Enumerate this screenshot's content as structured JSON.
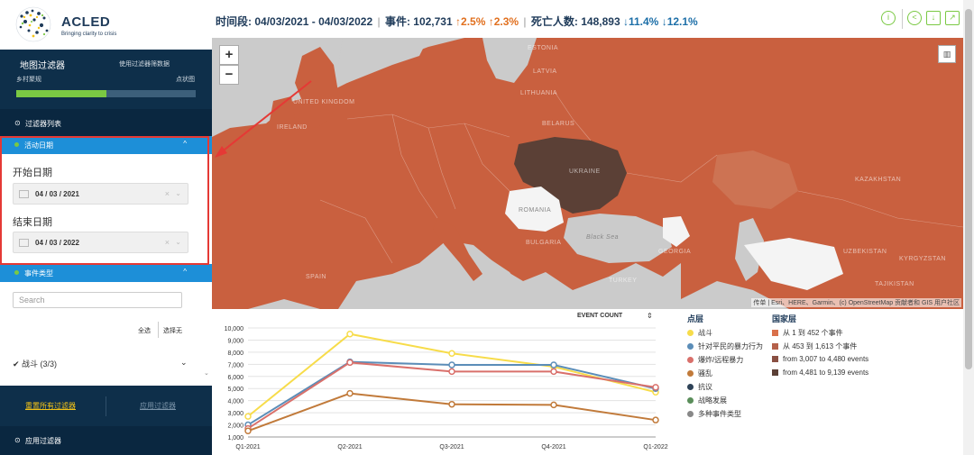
{
  "brand": {
    "name": "ACLED",
    "tagline": "Bringing clarity to crisis"
  },
  "map_filter": {
    "title": "地图过滤器",
    "use_filter": "使用过滤器筛数据",
    "rural": "乡村聚规",
    "point": "点状图",
    "progress_fraction": 0.5
  },
  "filter_list": {
    "icon": "⊙",
    "label": "过滤器列表"
  },
  "date_section": {
    "title": "活动日期",
    "start_label": "开始日期",
    "start_value": "04 / 03 / 2021",
    "end_label": "结束日期",
    "end_value": "04 / 03 / 2022"
  },
  "event_section": {
    "title": "事件类型",
    "search_placeholder": "Search",
    "select_all": "全选",
    "select_none": "选择无",
    "battle_row": "✔ 战斗 (3/3)"
  },
  "actions": {
    "reset": "重置所有过滤器",
    "apply": "应用过滤器"
  },
  "apply_filter_row": {
    "icon": "⊙",
    "label": "应用过滤器"
  },
  "stats": {
    "period_label": "时间段:",
    "period_value": "04/03/2021 - 04/03/2022",
    "events_label": "事件:",
    "events_value": "102,731",
    "events_change1": "↑2.5%",
    "events_change2": "↑2.3%",
    "deaths_label": "死亡人数:",
    "deaths_value": "148,893",
    "deaths_change1": "↓11.4%",
    "deaths_change2": "↓12.1%"
  },
  "map": {
    "zoom_in": "+",
    "zoom_out": "−",
    "attribution": "传单 | Esri、HERE、Garmin、(c) OpenStreetMap 贡献者和 GIS 用户社区",
    "labels": {
      "estonia": "ESTONIA",
      "latvia": "LATVIA",
      "lithuania": "LITHUANIA",
      "belarus": "BELARUS",
      "ukraine": "UKRAINE",
      "romania": "ROMANIA",
      "bulgaria": "BULGARIA",
      "black_sea": "Black Sea",
      "georgia": "GEORGIA",
      "turkey": "TURKEY",
      "kazakhstan": "KAZAKHSTAN",
      "spain": "SPAIN",
      "uzbekistan": "UZBEKISTAN",
      "kyrgyzstan": "KYRGYZSTAN",
      "tajikistan": "TAJIKISTAN",
      "united_kingdom": "UNITED KINGDOM",
      "ireland": "IRELAND"
    },
    "colors": {
      "water": "#cbcbcb",
      "base": "#c9603f",
      "high": "#5b4036",
      "none": "#f4f4f4"
    }
  },
  "legend": {
    "points_title": "点层",
    "points": [
      {
        "label": "战斗",
        "color": "#f7dc4a"
      },
      {
        "label": "针对平民的暴力行为",
        "color": "#5b8db8"
      },
      {
        "label": "爆炸/远程暴力",
        "color": "#d9706b"
      },
      {
        "label": "骚乱",
        "color": "#c17a3a"
      },
      {
        "label": "抗议",
        "color": "#2e4257"
      },
      {
        "label": "战略发展",
        "color": "#5a8e5a"
      },
      {
        "label": "多种事件类型",
        "color": "#888888"
      }
    ],
    "country_title": "国家层",
    "country": [
      {
        "label": "从 1 到 452 个事件",
        "color": "#d9704a"
      },
      {
        "label": "从 453 到 1,613 个事件",
        "color": "#b5614a"
      },
      {
        "label": "from 3,007 to 4,480 events",
        "color": "#8a5043"
      },
      {
        "label": "from 4,481 to 9,139 events",
        "color": "#5b4036"
      }
    ]
  },
  "chart_data": {
    "type": "line",
    "selector_label": "EVENT COUNT",
    "categories": [
      "Q1-2021",
      "Q2-2021",
      "Q3-2021",
      "Q4-2021",
      "Q1-2022"
    ],
    "ylim": [
      1000,
      10000
    ],
    "yticks": [
      1000,
      2000,
      3000,
      4000,
      5000,
      6000,
      7000,
      8000,
      9000,
      10000
    ],
    "ytick_labels": [
      "1,000",
      "2,000",
      "3,000",
      "4,000",
      "5,000",
      "6,000",
      "7,000",
      "8,000",
      "9,000",
      "10,000"
    ],
    "grid": true,
    "series": [
      {
        "name": "战斗",
        "color": "#f7dc4a",
        "values": [
          2700,
          9500,
          7900,
          6800,
          4700
        ]
      },
      {
        "name": "针对平民的暴力行为",
        "color": "#5b8db8",
        "values": [
          2000,
          7200,
          6950,
          6950,
          5000
        ]
      },
      {
        "name": "爆炸/远程暴力",
        "color": "#d9706b",
        "values": [
          1700,
          7150,
          6400,
          6400,
          5100
        ]
      },
      {
        "name": "骚乱",
        "color": "#c17a3a",
        "values": [
          1500,
          4600,
          3700,
          3650,
          2400
        ]
      }
    ]
  }
}
